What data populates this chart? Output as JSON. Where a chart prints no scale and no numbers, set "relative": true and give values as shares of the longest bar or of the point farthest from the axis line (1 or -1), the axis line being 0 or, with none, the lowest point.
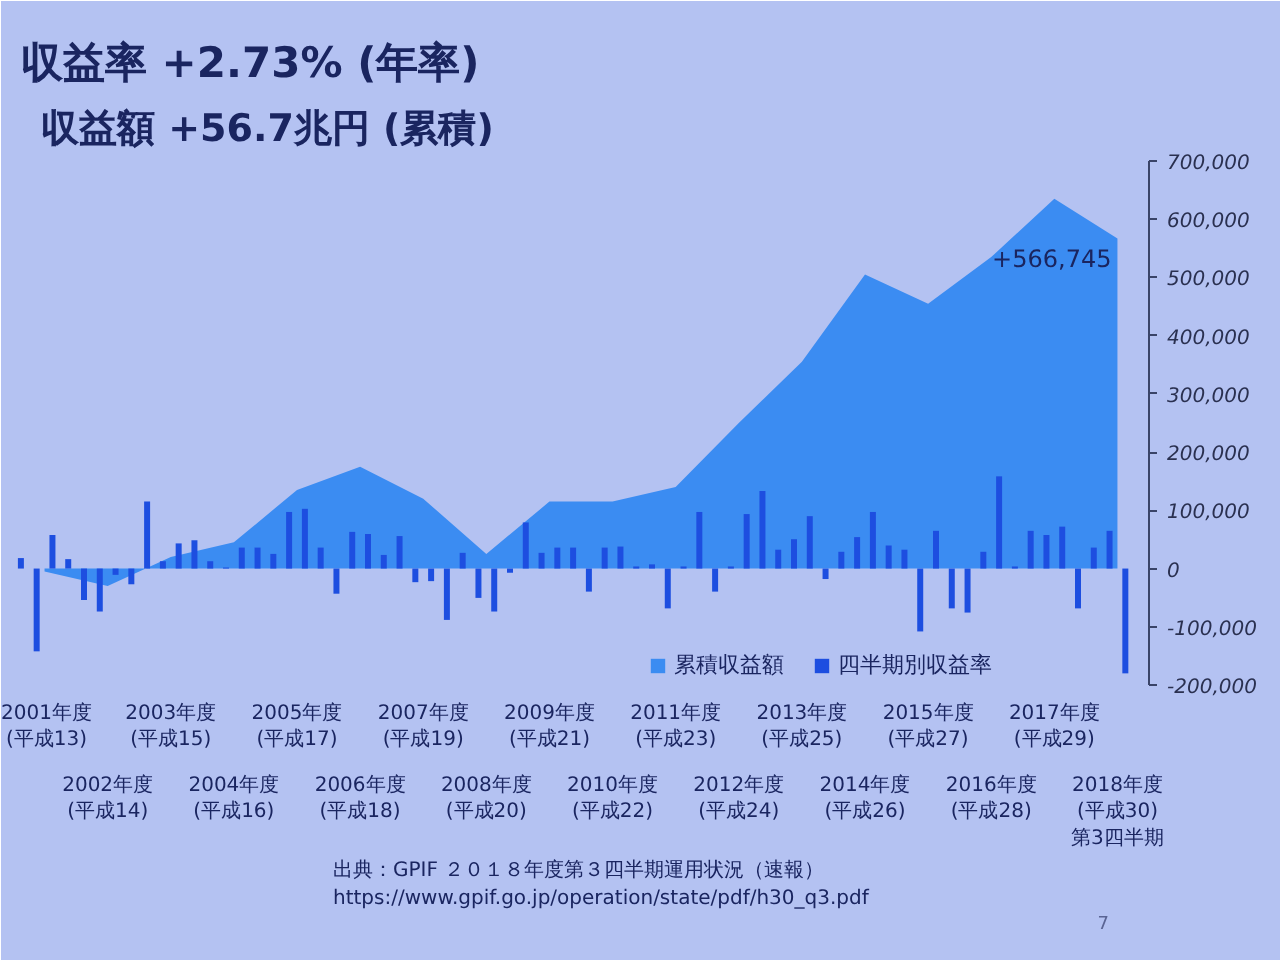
{
  "chart_data": [
    {
      "type": "area",
      "title": "収益率 +2.73% (年率)",
      "subtitle": "収益額 +56.7兆円 (累積)",
      "legend": "bottom right",
      "categories": [
        "2001年度\n(平成13)",
        "2002年度\n(平成14)",
        "2003年度\n(平成15)",
        "2004年度\n(平成16)",
        "2005年度\n(平成17)",
        "2006年度\n(平成18)",
        "2007年度\n(平成19)",
        "2008年度\n(平成20)",
        "2009年度\n(平成21)",
        "2010年度\n(平成22)",
        "2011年度\n(平成23)",
        "2012年度\n(平成24)",
        "2013年度\n(平成25)",
        "2014年度\n(平成26)",
        "2015年度\n(平成27)",
        "2016年度\n(平成28)",
        "2017年度\n(平成29)",
        "2018年度\n(平成30)\n第3四半期"
      ],
      "ylim": [
        -200000,
        700000
      ],
      "yticks": [
        {
          "value": -200000,
          "label": "-200,000"
        },
        {
          "value": -100000,
          "label": "-100,000"
        },
        0,
        {
          "value": 100000,
          "label": "100,000"
        },
        {
          "value": 200000,
          "label": "200,000"
        },
        {
          "value": 300000,
          "label": "300,000"
        },
        {
          "value": 400000,
          "label": "400,000"
        },
        {
          "value": 500000,
          "label": "500,000"
        },
        {
          "value": 600000,
          "label": "600,000"
        },
        {
          "value": 700000,
          "label": "700,000"
        }
      ],
      "series": [
        {
          "name": "累積収益額",
          "color": "#3b8cf2",
          "values": [
            -5000,
            -30000,
            20000,
            45000,
            135000,
            175000,
            120000,
            25000,
            115000,
            115000,
            140000,
            250000,
            355000,
            505000,
            455000,
            535000,
            635000,
            566745
          ],
          "value_labels": [
            null,
            null,
            null,
            null,
            null,
            null,
            null,
            null,
            null,
            null,
            null,
            null,
            null,
            null,
            null,
            null,
            null,
            "+566,745"
          ]
        }
      ],
      "annotations": [
        "出典：GPIF ２０１８年度第３四半期運用状況（速報）",
        "https://www.gpif.go.jp/operation/state/pdf/h30_q3.pdf",
        "7"
      ]
    },
    {
      "type": "bar",
      "relative": true,
      "legend": "bottom right",
      "categories": [
        null,
        null,
        null,
        null,
        null,
        null,
        null,
        null,
        null,
        null,
        null,
        null,
        null,
        null,
        null,
        null,
        null,
        null
      ],
      "series": [
        {
          "name": "四半期別収益率",
          "color": "#1d4ee0",
          "values": [
            0.1,
            -0.3,
            0.64,
            0.07,
            0.14,
            -0.24,
            0.31,
            0.15,
            0.44,
            -0.22,
            0.04,
            -0.22,
            0.18,
            0.16,
            0.18,
            -0.42,
            0.36,
            0.2
          ]
        },
        {
          "color": "#1d4ee0",
          "values": [
            -0.79,
            -0.41,
            0.07,
            0.01,
            0.54,
            0.35,
            -0.13,
            -0.28,
            0.15,
            0.2,
            -0.38,
            0.02,
            0.28,
            0.3,
            -0.6,
            0.16,
            0.32,
            0.36
          ]
        },
        {
          "color": "#1d4ee0",
          "values": [
            0.32,
            -0.06,
            0.24,
            0.2,
            0.57,
            0.33,
            -0.12,
            -0.41,
            0.2,
            0.21,
            0.02,
            0.52,
            0.5,
            0.54,
            0.36,
            0.88,
            0.4,
            -1
          ]
        },
        {
          "color": "#1d4ee0",
          "values": [
            0.09,
            -0.15,
            0.27,
            0.2,
            0.2,
            0.13,
            -0.49,
            -0.04,
            0.2,
            0.02,
            0.54,
            0.74,
            -0.1,
            0.22,
            -0.38,
            0.02,
            -0.38,
            null
          ]
        }
      ]
    }
  ]
}
